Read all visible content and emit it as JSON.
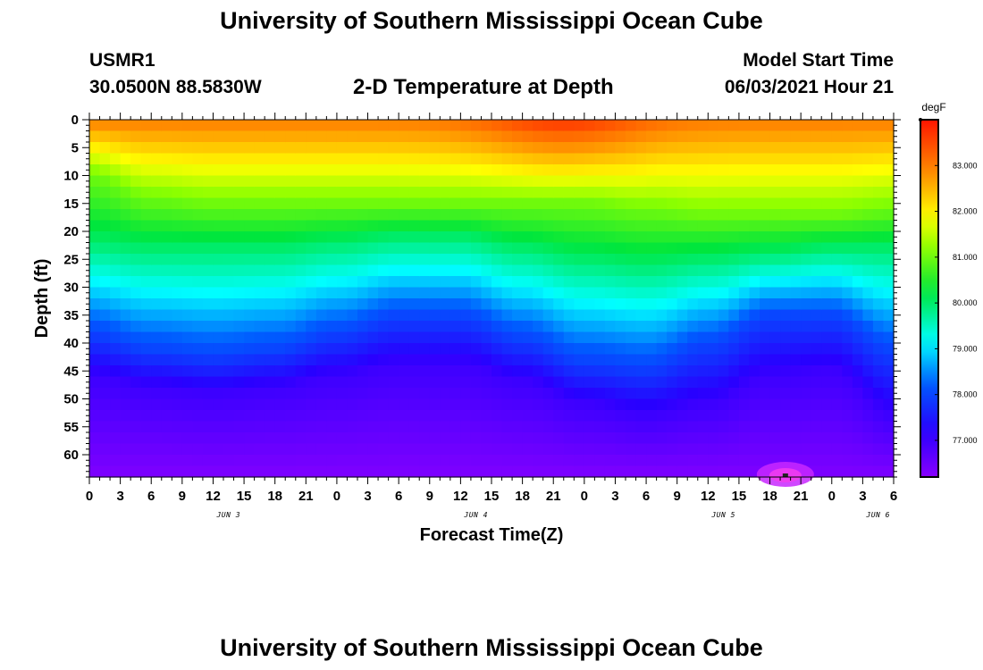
{
  "page": {
    "title_top": "University of Southern Mississippi Ocean Cube",
    "title_bottom": "University of Southern Mississippi Ocean Cube",
    "station": "USMR1",
    "coords": "30.0500N  88.5830W",
    "plot_title": "2-D Temperature at Depth",
    "model_label": "Model Start Time",
    "model_time": "06/03/2021 Hour 21"
  },
  "chart_data": {
    "type": "heatmap",
    "title": "2-D Temperature at Depth",
    "xlabel": "Forecast Time(Z)",
    "ylabel": "Depth (ft)",
    "colorbar_label": "degF",
    "x_ticks": [
      "0",
      "3",
      "6",
      "9",
      "12",
      "15",
      "18",
      "21",
      "0",
      "3",
      "6",
      "9",
      "12",
      "15",
      "18",
      "21",
      "0",
      "3",
      "6",
      "9",
      "12",
      "15",
      "18",
      "21",
      "0",
      "3",
      "6"
    ],
    "date_labels": [
      {
        "label": "JUN 3",
        "hour_index": 4.5
      },
      {
        "label": "JUN 4",
        "hour_index": 12.5
      },
      {
        "label": "JUN 5",
        "hour_index": 20.5
      },
      {
        "label": "JUN 6",
        "hour_index": 25.5
      }
    ],
    "y_ticks": [
      0,
      5,
      10,
      15,
      20,
      25,
      30,
      35,
      40,
      45,
      50,
      55,
      60
    ],
    "ylim": [
      0,
      64
    ],
    "xlim_hours": [
      0,
      78
    ],
    "colorbar_ticks": [
      "77.000",
      "78.000",
      "79.000",
      "80.000",
      "81.000",
      "82.000",
      "83.000"
    ],
    "color_range": [
      76.2,
      84.0
    ],
    "isotherm_depths_ft": {
      "hours": [
        0,
        6,
        12,
        18,
        24,
        30,
        36,
        42,
        48,
        54,
        60,
        66,
        72,
        78
      ],
      "t81": [
        10,
        14,
        15,
        15,
        15,
        15,
        15,
        15,
        15,
        16,
        17,
        17,
        17,
        16
      ],
      "t80": [
        22,
        23,
        23,
        23,
        22,
        21,
        21,
        23,
        25,
        26,
        25,
        24,
        23,
        23
      ],
      "t78": [
        38,
        41,
        42,
        41,
        38,
        35,
        35,
        39,
        43,
        44,
        40,
        35,
        35,
        41
      ],
      "t77": [
        46,
        48,
        49,
        48,
        46,
        44,
        44,
        47,
        51,
        53,
        51,
        46,
        45,
        53
      ]
    }
  }
}
